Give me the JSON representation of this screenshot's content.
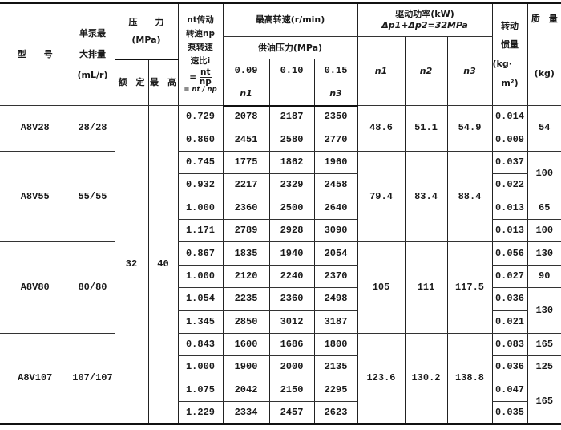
{
  "header": {
    "model": "型　　号",
    "displacement": [
      "单泵最",
      "大排量",
      "(mL/r)"
    ],
    "pressure": [
      "压　　力",
      "(MPa)"
    ],
    "pressure_rated": "额　定",
    "pressure_max": "最　高",
    "ratio": [
      "nt传动",
      "转速np",
      "泵转速",
      "速比i",
      "= nt / np"
    ],
    "ratio_formula": {
      "numerator": "nt",
      "denominator": "np",
      "prefix": "="
    },
    "max_speed": "最高转速(r/min)",
    "supply_pressure": "供油压力(MPa)",
    "supply_values": [
      "0.09",
      "0.10",
      "0.15"
    ],
    "supply_sub": [
      "n1",
      "",
      "n3"
    ],
    "power": [
      "驱动功率(kW)",
      "Δp1+Δp2=32MPa"
    ],
    "power_cols": [
      "n1",
      "n2",
      "n3"
    ],
    "inertia": [
      "转动",
      "惯量",
      "(kg·",
      "m²)"
    ],
    "mass": [
      "质　量",
      "(kg)"
    ]
  },
  "rated_pressure": "32",
  "max_pressure": "40",
  "models": [
    {
      "name": "A8V28",
      "displacement": "28/28",
      "rows": [
        [
          "0.729",
          "2078",
          "2187",
          "2350"
        ],
        [
          "0.860",
          "2451",
          "2580",
          "2770"
        ]
      ],
      "power": [
        "48.6",
        "51.1",
        "54.9"
      ],
      "inertia": [
        "0.014",
        "0.009"
      ],
      "mass": [
        "54",
        null
      ]
    },
    {
      "name": "A8V55",
      "displacement": "55/55",
      "rows": [
        [
          "0.745",
          "1775",
          "1862",
          "1960"
        ],
        [
          "0.932",
          "2217",
          "2329",
          "2458"
        ],
        [
          "1.000",
          "2360",
          "2500",
          "2640"
        ],
        [
          "1.171",
          "2789",
          "2928",
          "3090"
        ]
      ],
      "power": [
        "79.4",
        "83.4",
        "88.4"
      ],
      "inertia": [
        "0.037",
        "0.022",
        "0.013",
        "0.013"
      ],
      "mass": [
        "100",
        null,
        "65",
        "100"
      ]
    },
    {
      "name": "A8V80",
      "displacement": "80/80",
      "rows": [
        [
          "0.867",
          "1835",
          "1940",
          "2054"
        ],
        [
          "1.000",
          "2120",
          "2240",
          "2370"
        ],
        [
          "1.054",
          "2235",
          "2360",
          "2498"
        ],
        [
          "1.345",
          "2850",
          "3012",
          "3187"
        ]
      ],
      "power": [
        "105",
        "111",
        "117.5"
      ],
      "inertia": [
        "0.056",
        "0.027",
        "0.036",
        "0.021"
      ],
      "mass": [
        "130",
        "90",
        "130",
        null
      ]
    },
    {
      "name": "A8V107",
      "displacement": "107/107",
      "rows": [
        [
          "0.843",
          "1600",
          "1686",
          "1800"
        ],
        [
          "1.000",
          "1900",
          "2000",
          "2135"
        ],
        [
          "1.075",
          "2042",
          "2150",
          "2295"
        ],
        [
          "1.229",
          "2334",
          "2457",
          "2623"
        ]
      ],
      "power": [
        "123.6",
        "130.2",
        "138.8"
      ],
      "inertia": [
        "0.083",
        "0.036",
        "0.047",
        "0.035"
      ],
      "mass": [
        "165",
        "125",
        "165",
        null
      ]
    }
  ]
}
